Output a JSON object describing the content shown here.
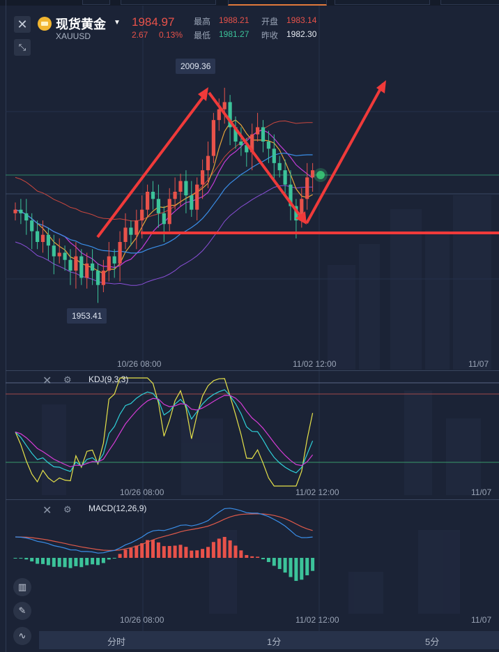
{
  "header": {
    "symbol_name": "现货黄金",
    "symbol_code": "XAUUSD",
    "price": "1984.97",
    "change": "2.67",
    "change_pct": "0.13%",
    "high_label": "最高",
    "high_value": "1988.21",
    "low_label": "最低",
    "low_value": "1981.27",
    "open_label": "开盘",
    "open_value": "1983.14",
    "prev_close_label": "昨收",
    "prev_close_value": "1982.30"
  },
  "annotations": {
    "high_marker": "2009.36",
    "low_marker": "1953.41"
  },
  "axes": {
    "main_dates": [
      "10/26 08:00",
      "11/02 12:00",
      "11/07"
    ],
    "kdj_dates": [
      "10/26 08:00",
      "11/02 12:00",
      "11/07"
    ],
    "macd_dates": [
      "10/26 08:00",
      "11/02 12:00",
      "11/07"
    ]
  },
  "panels": {
    "kdj_title": "KDJ(9,3,3)",
    "macd_title": "MACD(12,26,9)"
  },
  "timeframes": [
    "分时",
    "1分",
    "5分"
  ],
  "icons": {
    "close": "close-icon",
    "collapse": "collapse-icon",
    "gear": "gear-icon",
    "candles": "candlestick-icon",
    "pen": "pen-icon",
    "indicator": "indicator-icon"
  },
  "colors": {
    "up": "#e8524a",
    "down": "#3cc39a",
    "background": "#1b2336",
    "drawing": "#f03a3a"
  },
  "chart_data": {
    "type": "candlestick",
    "title": "",
    "ylim": [
      1945,
      2015
    ],
    "close_series": [
      1975,
      1974,
      1972,
      1969,
      1966,
      1968,
      1965,
      1962,
      1963,
      1961,
      1958,
      1962,
      1956,
      1960,
      1958,
      1954,
      1958,
      1962,
      1960,
      1966,
      1970,
      1968,
      1972,
      1975,
      1980,
      1978,
      1974,
      1971,
      1978,
      1980,
      1983,
      1979,
      1975,
      1982,
      1986,
      1990,
      2000,
      2003,
      2005,
      1998,
      1994,
      1993,
      1991,
      1996,
      1998,
      1994,
      1992,
      1988,
      1986,
      1982,
      1976,
      1972,
      1978,
      1984,
      1986
    ]
  }
}
